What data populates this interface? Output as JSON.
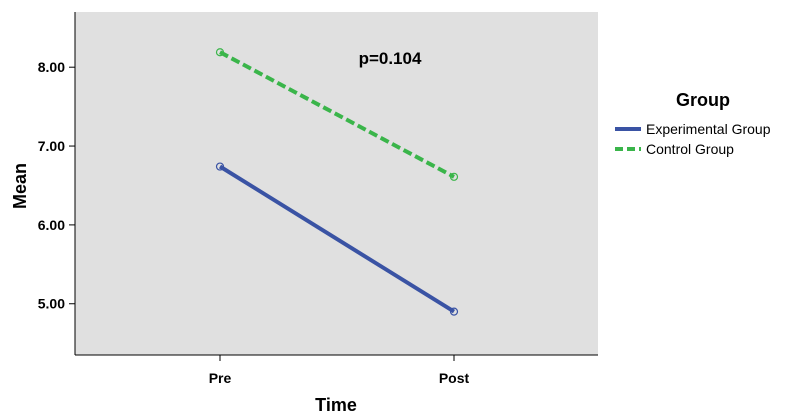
{
  "chart_data": {
    "type": "line",
    "title": "",
    "xlabel": "Time",
    "ylabel": "Mean",
    "categories": [
      "Pre",
      "Post"
    ],
    "ylim": [
      4.35,
      8.7
    ],
    "yticks": [
      5.0,
      6.0,
      7.0,
      8.0
    ],
    "ytick_labels": [
      "5.00",
      "6.00",
      "7.00",
      "8.00"
    ],
    "grid": false,
    "background": "#e0e0e0",
    "legend": {
      "title": "Group",
      "placement": "right"
    },
    "annotation": "p=0.104",
    "series": [
      {
        "name": "Experimental Group",
        "values": [
          6.74,
          4.9
        ],
        "color": "#3a53a4",
        "dash": "solid"
      },
      {
        "name": "Control Group",
        "values": [
          8.19,
          6.61
        ],
        "color": "#3ab54a",
        "dash": "dashed"
      }
    ]
  }
}
